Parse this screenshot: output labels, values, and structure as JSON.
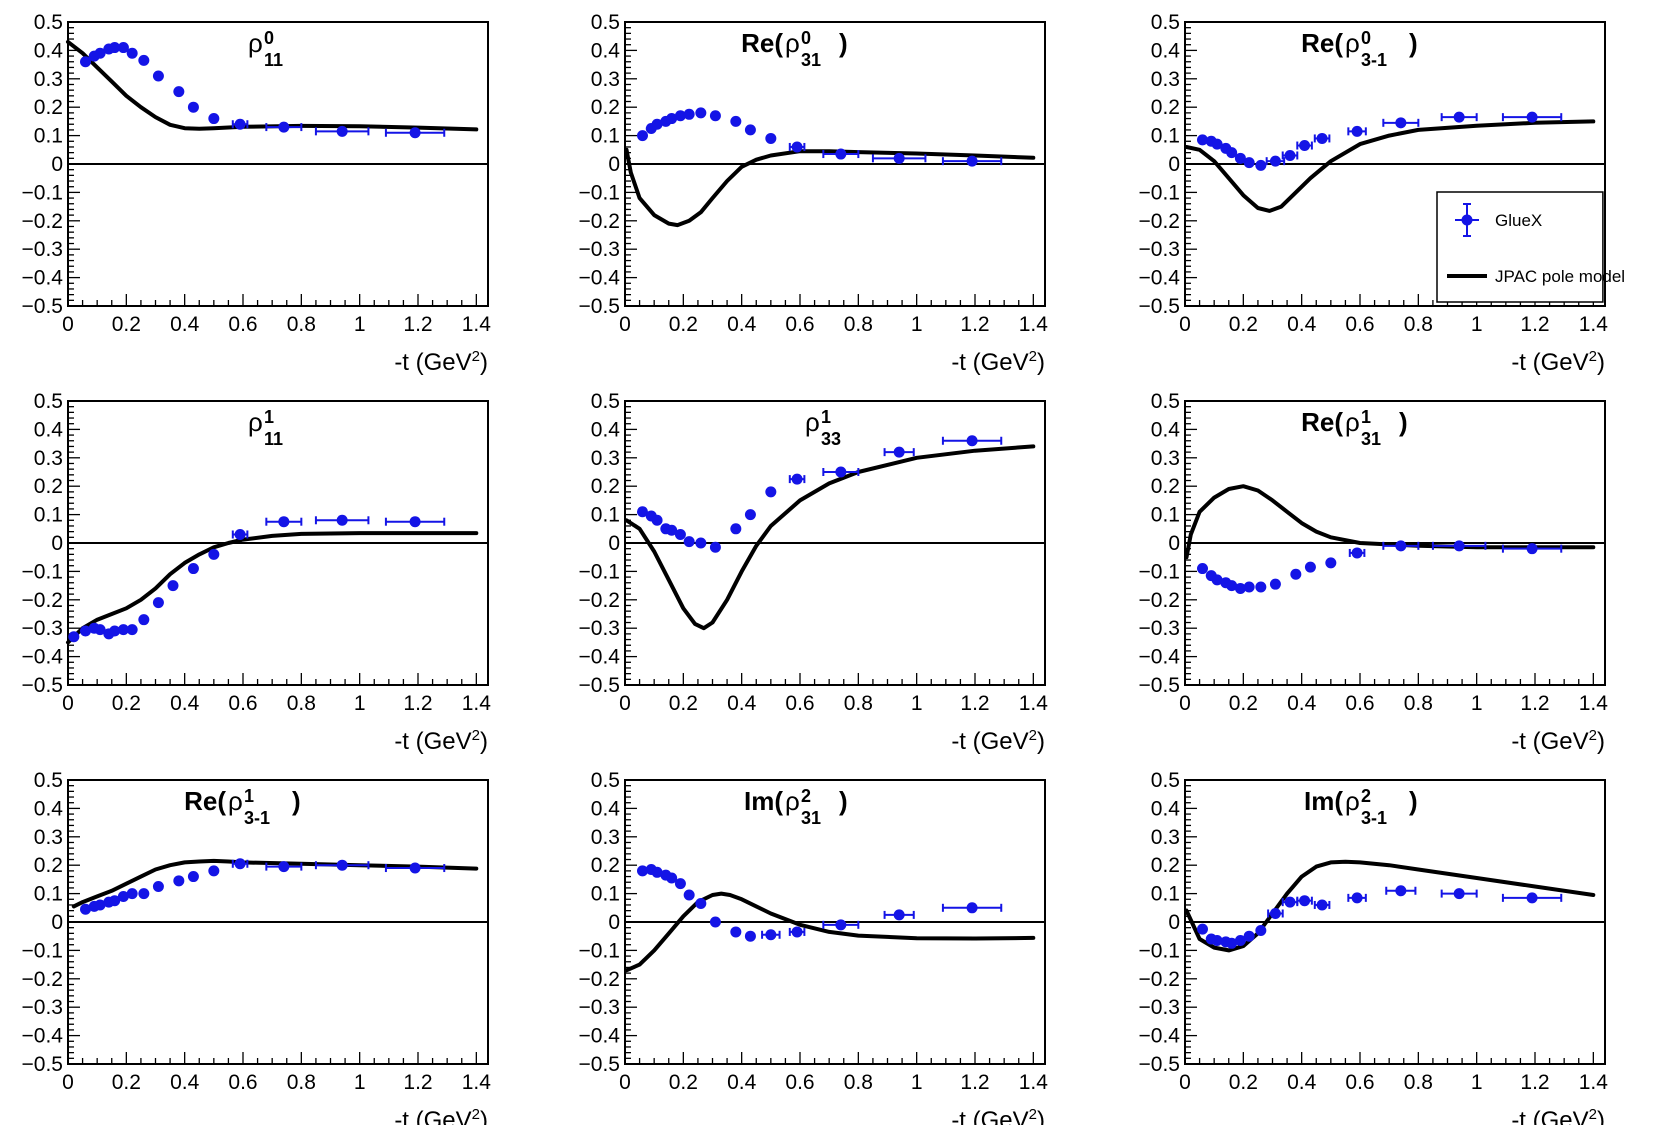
{
  "chart_data": {
    "type": "scatter",
    "layout": "3x3 grid",
    "series_names": {
      "data": "GlueX",
      "model": "JPAC pole model"
    },
    "colors": {
      "data": "#1414e6",
      "model": "#000000"
    },
    "xlabel": "-t (GeV",
    "xlabel_sup": "2",
    "xlabel_close": ")",
    "xlim": [
      0,
      1.44
    ],
    "ylim": [
      -0.5,
      0.5
    ],
    "xticks": [
      0,
      0.2,
      0.4,
      0.6,
      0.8,
      1,
      1.2,
      1.4
    ],
    "xtick_labels": [
      "0",
      "0.2",
      "0.4",
      "0.6",
      "0.8",
      "1",
      "1.2",
      "1.4"
    ],
    "yticks": [
      -0.5,
      -0.4,
      -0.3,
      -0.2,
      -0.1,
      0,
      0.1,
      0.2,
      0.3,
      0.4,
      0.5
    ],
    "ytick_labels": [
      "−0.5",
      "−0.4",
      "−0.3",
      "−0.2",
      "−0.1",
      "0",
      "0.1",
      "0.2",
      "0.3",
      "0.4",
      "0.5"
    ],
    "panels": [
      {
        "id": "rho0-11",
        "title": {
          "bold": false,
          "pre": "",
          "base": "ρ",
          "sup": "0",
          "sub": "11",
          "post": ""
        },
        "data": {
          "x": [
            0.06,
            0.09,
            0.11,
            0.14,
            0.16,
            0.19,
            0.22,
            0.26,
            0.31,
            0.38,
            0.43,
            0.5,
            0.59,
            0.74,
            0.94,
            1.19
          ],
          "y": [
            0.36,
            0.38,
            0.39,
            0.405,
            0.41,
            0.41,
            0.39,
            0.365,
            0.31,
            0.255,
            0.2,
            0.16,
            0.14,
            0.13,
            0.115,
            0.11
          ],
          "xerr": [
            0,
            0,
            0,
            0,
            0,
            0,
            0,
            0,
            0,
            0,
            0,
            0,
            0.025,
            0.06,
            0.09,
            0.1
          ]
        },
        "model": {
          "x": [
            0,
            0.05,
            0.1,
            0.15,
            0.2,
            0.25,
            0.3,
            0.35,
            0.4,
            0.45,
            0.5,
            0.6,
            0.8,
            1.0,
            1.2,
            1.4
          ],
          "y": [
            0.43,
            0.39,
            0.34,
            0.29,
            0.24,
            0.2,
            0.165,
            0.138,
            0.126,
            0.124,
            0.126,
            0.131,
            0.134,
            0.133,
            0.128,
            0.122
          ]
        }
      },
      {
        "id": "re-rho0-31",
        "title": {
          "bold": true,
          "pre": "Re(",
          "base": "ρ",
          "sup": "0",
          "sub": "31",
          "post": ")"
        },
        "data": {
          "x": [
            0.06,
            0.09,
            0.11,
            0.14,
            0.16,
            0.19,
            0.22,
            0.26,
            0.31,
            0.38,
            0.43,
            0.5,
            0.59,
            0.74,
            0.94,
            1.19
          ],
          "y": [
            0.1,
            0.125,
            0.14,
            0.15,
            0.16,
            0.17,
            0.175,
            0.18,
            0.17,
            0.15,
            0.12,
            0.09,
            0.06,
            0.035,
            0.02,
            0.01
          ],
          "xerr": [
            0,
            0,
            0,
            0,
            0,
            0,
            0,
            0,
            0,
            0,
            0,
            0,
            0.025,
            0.06,
            0.09,
            0.1
          ]
        },
        "model": {
          "x": [
            0.005,
            0.02,
            0.05,
            0.1,
            0.15,
            0.18,
            0.22,
            0.26,
            0.3,
            0.35,
            0.4,
            0.45,
            0.5,
            0.6,
            0.7,
            0.8,
            1.0,
            1.2,
            1.4
          ],
          "y": [
            0.05,
            -0.03,
            -0.12,
            -0.18,
            -0.21,
            -0.215,
            -0.2,
            -0.17,
            -0.12,
            -0.06,
            -0.01,
            0.015,
            0.03,
            0.045,
            0.045,
            0.042,
            0.037,
            0.03,
            0.022
          ]
        }
      },
      {
        "id": "re-rho0-3-1",
        "title": {
          "bold": true,
          "pre": "Re(",
          "base": "ρ",
          "sup": "0",
          "sub": "3-1",
          "post": ")"
        },
        "data": {
          "x": [
            0.06,
            0.09,
            0.11,
            0.14,
            0.16,
            0.19,
            0.22,
            0.26,
            0.31,
            0.36,
            0.41,
            0.47,
            0.59,
            0.74,
            0.94,
            1.19
          ],
          "y": [
            0.085,
            0.08,
            0.07,
            0.055,
            0.04,
            0.02,
            0.005,
            -0.005,
            0.01,
            0.03,
            0.065,
            0.09,
            0.115,
            0.145,
            0.165,
            0.165
          ],
          "xerr": [
            0,
            0,
            0,
            0,
            0,
            0,
            0,
            0,
            0.03,
            0.025,
            0.025,
            0.025,
            0.03,
            0.06,
            0.06,
            0.1
          ]
        },
        "model": {
          "x": [
            0.005,
            0.05,
            0.1,
            0.15,
            0.2,
            0.25,
            0.29,
            0.33,
            0.38,
            0.43,
            0.5,
            0.6,
            0.7,
            0.8,
            1.0,
            1.2,
            1.4
          ],
          "y": [
            0.06,
            0.05,
            0.01,
            -0.05,
            -0.11,
            -0.155,
            -0.165,
            -0.15,
            -0.1,
            -0.05,
            0.01,
            0.07,
            0.1,
            0.12,
            0.135,
            0.145,
            0.15
          ]
        }
      },
      {
        "id": "rho1-11",
        "title": {
          "bold": false,
          "pre": "",
          "base": "ρ",
          "sup": "1",
          "sub": "11",
          "post": ""
        },
        "data": {
          "x": [
            0.02,
            0.06,
            0.09,
            0.11,
            0.14,
            0.16,
            0.19,
            0.22,
            0.26,
            0.31,
            0.36,
            0.43,
            0.5,
            0.59,
            0.74,
            0.94,
            1.19
          ],
          "y": [
            -0.33,
            -0.31,
            -0.3,
            -0.305,
            -0.32,
            -0.31,
            -0.305,
            -0.305,
            -0.27,
            -0.21,
            -0.15,
            -0.09,
            -0.04,
            0.03,
            0.075,
            0.08,
            0.075
          ],
          "xerr": [
            0,
            0,
            0,
            0,
            0,
            0,
            0,
            0,
            0,
            0,
            0,
            0,
            0,
            0.025,
            0.06,
            0.09,
            0.1
          ]
        },
        "model": {
          "x": [
            0,
            0.05,
            0.1,
            0.15,
            0.2,
            0.25,
            0.3,
            0.35,
            0.4,
            0.45,
            0.5,
            0.55,
            0.6,
            0.7,
            0.8,
            1.0,
            1.2,
            1.4
          ],
          "y": [
            -0.35,
            -0.3,
            -0.27,
            -0.25,
            -0.23,
            -0.2,
            -0.16,
            -0.11,
            -0.07,
            -0.04,
            -0.015,
            0.0,
            0.012,
            0.025,
            0.032,
            0.035,
            0.035,
            0.035
          ]
        }
      },
      {
        "id": "rho1-33",
        "title": {
          "bold": false,
          "pre": "",
          "base": "ρ",
          "sup": "1",
          "sub": "33",
          "post": ""
        },
        "data": {
          "x": [
            0.06,
            0.09,
            0.11,
            0.14,
            0.16,
            0.19,
            0.22,
            0.26,
            0.31,
            0.38,
            0.43,
            0.5,
            0.59,
            0.74,
            0.94,
            1.19
          ],
          "y": [
            0.11,
            0.095,
            0.08,
            0.05,
            0.045,
            0.03,
            0.005,
            0.0,
            -0.015,
            0.05,
            0.1,
            0.18,
            0.225,
            0.25,
            0.32,
            0.36
          ],
          "xerr": [
            0,
            0,
            0,
            0,
            0,
            0,
            0,
            0,
            0,
            0,
            0,
            0,
            0.025,
            0.06,
            0.05,
            0.1
          ]
        },
        "model": {
          "x": [
            0.005,
            0.05,
            0.1,
            0.15,
            0.2,
            0.24,
            0.27,
            0.3,
            0.35,
            0.4,
            0.45,
            0.5,
            0.6,
            0.7,
            0.8,
            1.0,
            1.2,
            1.4
          ],
          "y": [
            0.08,
            0.05,
            -0.03,
            -0.13,
            -0.23,
            -0.285,
            -0.3,
            -0.28,
            -0.2,
            -0.1,
            -0.01,
            0.06,
            0.15,
            0.21,
            0.25,
            0.3,
            0.325,
            0.34
          ]
        }
      },
      {
        "id": "re-rho1-31",
        "title": {
          "bold": true,
          "pre": "Re(",
          "base": "ρ",
          "sup": "1",
          "sub": "31",
          "post": ")"
        },
        "data": {
          "x": [
            0.06,
            0.09,
            0.11,
            0.14,
            0.16,
            0.19,
            0.22,
            0.26,
            0.31,
            0.38,
            0.43,
            0.5,
            0.59,
            0.74,
            0.94,
            1.19
          ],
          "y": [
            -0.09,
            -0.115,
            -0.13,
            -0.14,
            -0.15,
            -0.16,
            -0.155,
            -0.155,
            -0.145,
            -0.11,
            -0.085,
            -0.07,
            -0.035,
            -0.01,
            -0.01,
            -0.02
          ],
          "xerr": [
            0,
            0,
            0,
            0,
            0,
            0,
            0,
            0,
            0,
            0,
            0,
            0,
            0.025,
            0.06,
            0.09,
            0.1
          ]
        },
        "model": {
          "x": [
            0.005,
            0.02,
            0.05,
            0.1,
            0.15,
            0.2,
            0.25,
            0.3,
            0.35,
            0.4,
            0.45,
            0.5,
            0.6,
            0.8,
            1.0,
            1.2,
            1.4
          ],
          "y": [
            -0.05,
            0.03,
            0.11,
            0.16,
            0.19,
            0.2,
            0.185,
            0.15,
            0.11,
            0.07,
            0.04,
            0.02,
            0.0,
            -0.01,
            -0.015,
            -0.015,
            -0.015
          ]
        }
      },
      {
        "id": "re-rho1-3-1",
        "title": {
          "bold": true,
          "pre": "Re(",
          "base": "ρ",
          "sup": "1",
          "sub": "3-1",
          "post": ")"
        },
        "data": {
          "x": [
            0.06,
            0.09,
            0.11,
            0.14,
            0.16,
            0.19,
            0.22,
            0.26,
            0.31,
            0.38,
            0.43,
            0.5,
            0.59,
            0.74,
            0.94,
            1.19
          ],
          "y": [
            0.045,
            0.055,
            0.06,
            0.07,
            0.075,
            0.09,
            0.1,
            0.1,
            0.125,
            0.145,
            0.16,
            0.18,
            0.205,
            0.195,
            0.2,
            0.19
          ],
          "xerr": [
            0,
            0,
            0,
            0,
            0,
            0,
            0,
            0,
            0,
            0,
            0,
            0,
            0.025,
            0.06,
            0.09,
            0.1
          ]
        },
        "model": {
          "x": [
            0.02,
            0.05,
            0.1,
            0.15,
            0.2,
            0.25,
            0.3,
            0.35,
            0.4,
            0.45,
            0.5,
            0.55,
            0.6,
            0.8,
            1.0,
            1.2,
            1.4
          ],
          "y": [
            0.055,
            0.07,
            0.09,
            0.11,
            0.135,
            0.16,
            0.185,
            0.2,
            0.21,
            0.213,
            0.215,
            0.213,
            0.21,
            0.205,
            0.2,
            0.195,
            0.188
          ]
        }
      },
      {
        "id": "im-rho2-31",
        "title": {
          "bold": true,
          "pre": "Im(",
          "base": "ρ",
          "sup": "2",
          "sub": "31",
          "post": ")"
        },
        "data": {
          "x": [
            0.06,
            0.09,
            0.11,
            0.14,
            0.16,
            0.19,
            0.22,
            0.26,
            0.31,
            0.38,
            0.43,
            0.5,
            0.59,
            0.74,
            0.94,
            1.19
          ],
          "y": [
            0.18,
            0.185,
            0.175,
            0.165,
            0.155,
            0.135,
            0.095,
            0.065,
            0.0,
            -0.035,
            -0.05,
            -0.045,
            -0.035,
            -0.01,
            0.025,
            0.05
          ],
          "xerr": [
            0,
            0,
            0,
            0,
            0,
            0,
            0,
            0,
            0,
            0,
            0,
            0.03,
            0.025,
            0.06,
            0.05,
            0.1
          ]
        },
        "model": {
          "x": [
            0.005,
            0.05,
            0.1,
            0.15,
            0.2,
            0.25,
            0.3,
            0.33,
            0.36,
            0.4,
            0.45,
            0.5,
            0.6,
            0.7,
            0.8,
            1.0,
            1.2,
            1.4
          ],
          "y": [
            -0.17,
            -0.15,
            -0.1,
            -0.04,
            0.02,
            0.07,
            0.095,
            0.1,
            0.095,
            0.08,
            0.055,
            0.03,
            -0.01,
            -0.035,
            -0.048,
            -0.057,
            -0.058,
            -0.056
          ]
        }
      },
      {
        "id": "im-rho2-3-1",
        "title": {
          "bold": true,
          "pre": "Im(",
          "base": "ρ",
          "sup": "2",
          "sub": "3-1",
          "post": ")"
        },
        "data": {
          "x": [
            0.06,
            0.09,
            0.11,
            0.14,
            0.16,
            0.19,
            0.22,
            0.26,
            0.31,
            0.36,
            0.41,
            0.47,
            0.59,
            0.74,
            0.94,
            1.19
          ],
          "y": [
            -0.025,
            -0.06,
            -0.065,
            -0.07,
            -0.075,
            -0.065,
            -0.05,
            -0.03,
            0.03,
            0.07,
            0.075,
            0.06,
            0.085,
            0.11,
            0.1,
            0.085
          ],
          "xerr": [
            0,
            0,
            0,
            0,
            0,
            0,
            0,
            0,
            0.025,
            0.025,
            0.025,
            0.025,
            0.03,
            0.05,
            0.06,
            0.1
          ]
        },
        "model": {
          "x": [
            0.005,
            0.05,
            0.1,
            0.15,
            0.2,
            0.25,
            0.3,
            0.35,
            0.4,
            0.45,
            0.5,
            0.55,
            0.6,
            0.7,
            0.8,
            1.0,
            1.2,
            1.4
          ],
          "y": [
            0.04,
            -0.06,
            -0.09,
            -0.1,
            -0.085,
            -0.04,
            0.03,
            0.1,
            0.16,
            0.195,
            0.21,
            0.212,
            0.21,
            0.2,
            0.185,
            0.155,
            0.125,
            0.095
          ]
        }
      }
    ]
  }
}
